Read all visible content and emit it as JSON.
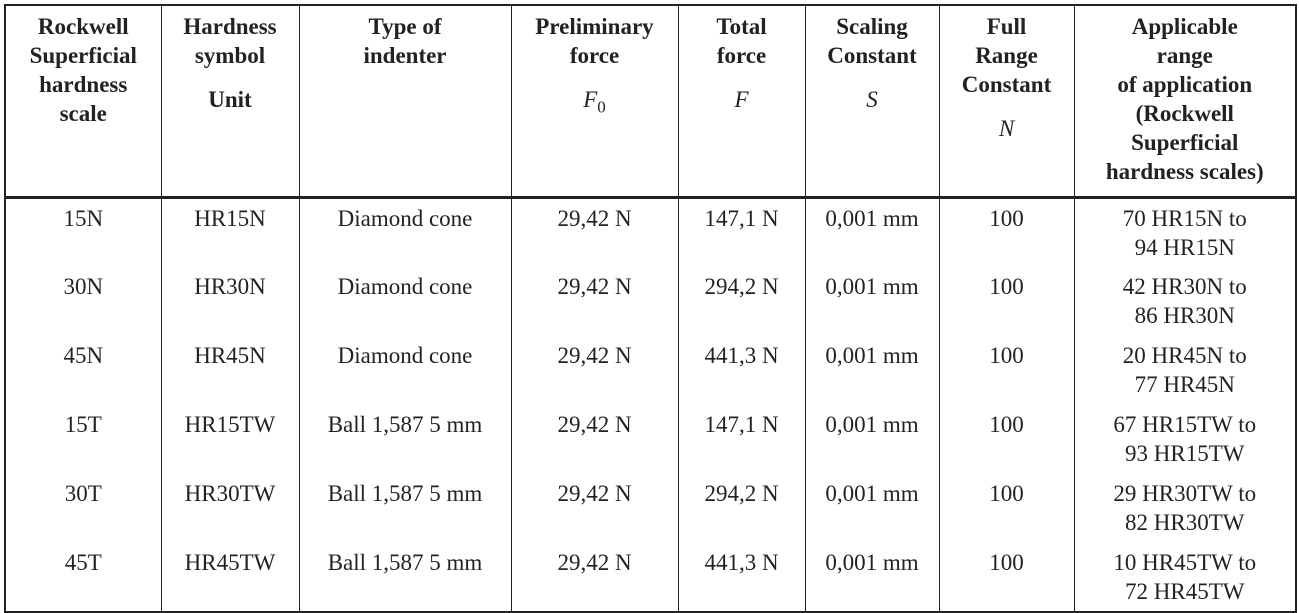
{
  "table": {
    "header": [
      {
        "lines": [
          "Rockwell",
          "Superficial",
          "hardness",
          "scale"
        ]
      },
      {
        "lines": [
          "Hardness",
          "symbol"
        ],
        "unit": "Unit"
      },
      {
        "lines": [
          "Type of",
          "indenter"
        ]
      },
      {
        "lines": [
          "Preliminary",
          "force"
        ],
        "symbol": "F",
        "subscript": "0"
      },
      {
        "lines": [
          "Total",
          "force"
        ],
        "symbol": "F"
      },
      {
        "lines": [
          "Scaling",
          "Constant"
        ],
        "symbol": "S"
      },
      {
        "lines": [
          "Full",
          "Range",
          "Constant"
        ],
        "symbol": "N"
      },
      {
        "lines": [
          "Applicable",
          "range",
          "of application",
          "(Rockwell",
          "Superficial",
          "hardness scales)"
        ]
      }
    ],
    "rows": [
      [
        "15N",
        "HR15N",
        "Diamond cone",
        "29,42 N",
        "147,1 N",
        "0,001 mm",
        "100",
        [
          "70 HR15N to",
          "94 HR15N"
        ]
      ],
      [
        "30N",
        "HR30N",
        "Diamond cone",
        "29,42 N",
        "294,2 N",
        "0,001 mm",
        "100",
        [
          "42 HR30N to",
          "86 HR30N"
        ]
      ],
      [
        "45N",
        "HR45N",
        "Diamond cone",
        "29,42 N",
        "441,3 N",
        "0,001 mm",
        "100",
        [
          "20 HR45N to",
          "77 HR45N"
        ]
      ],
      [
        "15T",
        "HR15TW",
        "Ball 1,587 5 mm",
        "29,42 N",
        "147,1 N",
        "0,001 mm",
        "100",
        [
          "67 HR15TW to",
          "93 HR15TW"
        ]
      ],
      [
        "30T",
        "HR30TW",
        "Ball 1,587 5 mm",
        "29,42 N",
        "294,2 N",
        "0,001 mm",
        "100",
        [
          "29 HR30TW to",
          "82 HR30TW"
        ]
      ],
      [
        "45T",
        "HR45TW",
        "Ball 1,587 5 mm",
        "29,42 N",
        "441,3 N",
        "0,001 mm",
        "100",
        [
          "10 HR45TW to",
          "72 HR45TW"
        ]
      ]
    ]
  }
}
